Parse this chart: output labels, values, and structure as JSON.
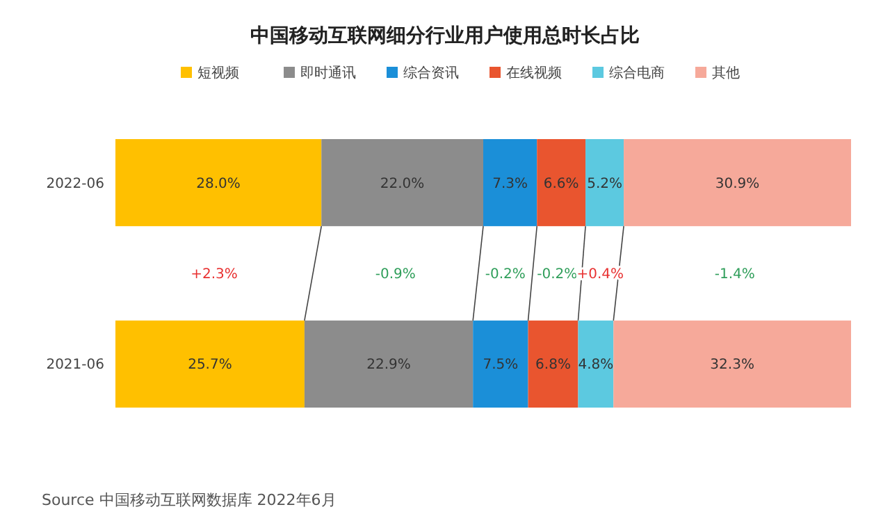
{
  "chart_data": {
    "type": "bar",
    "orientation": "horizontal",
    "stacked": true,
    "title": "中国移动互联网细分行业用户使用总时长占比",
    "categories": [
      "2022-06",
      "2021-06"
    ],
    "xlim": [
      0,
      100
    ],
    "tick_labels": "y",
    "legend": "top",
    "series": [
      {
        "name": "短视频",
        "color": "#ffc000",
        "values": [
          28.0,
          25.7
        ],
        "value_labels": [
          "28.0%",
          "25.7%"
        ]
      },
      {
        "name": "即时通讯",
        "color": "#8c8c8c",
        "values": [
          22.0,
          22.9
        ],
        "value_labels": [
          "22.0%",
          "22.9%"
        ]
      },
      {
        "name": "综合资讯",
        "color": "#1b8fd8",
        "values": [
          7.3,
          7.5
        ],
        "value_labels": [
          "7.3%",
          "7.5%"
        ]
      },
      {
        "name": "在线视频",
        "color": "#e9552f",
        "values": [
          6.6,
          6.8
        ],
        "value_labels": [
          "6.6%",
          "6.8%"
        ]
      },
      {
        "name": "综合电商",
        "color": "#5cc9e0",
        "values": [
          5.2,
          4.8
        ],
        "value_labels": [
          "5.2%",
          "4.8%"
        ]
      },
      {
        "name": "其他",
        "color": "#f6a99a",
        "values": [
          30.9,
          32.3
        ],
        "value_labels": [
          "30.9%",
          "32.3%"
        ]
      }
    ],
    "annotations": [
      "+2.3%",
      "-0.9%",
      "-0.2%",
      "-0.2%",
      "+0.4%",
      "-1.4%",
      "Source  中国移动互联网数据库 2022年6月"
    ]
  }
}
